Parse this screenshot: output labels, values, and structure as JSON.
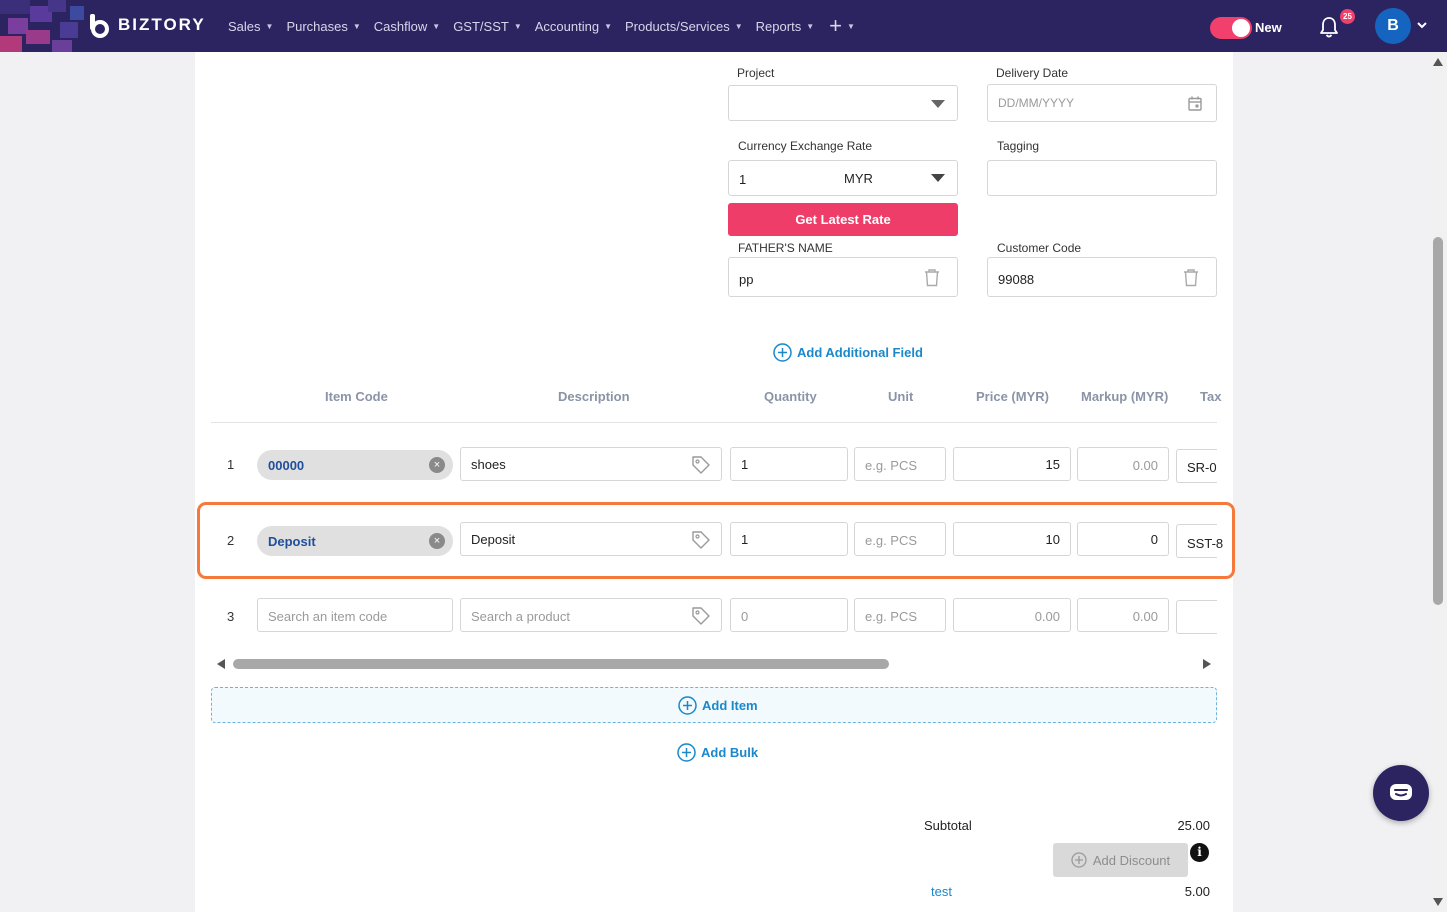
{
  "nav": {
    "brand": "BIZTORY",
    "items": [
      "Sales",
      "Purchases",
      "Cashflow",
      "GST/SST",
      "Accounting",
      "Products/Services",
      "Reports"
    ],
    "plus": "+",
    "toggle_label": "New",
    "notification_count": "25",
    "avatar_initial": "B",
    "accent_color": "#f0406b",
    "bg_color": "#2b2460"
  },
  "form": {
    "project_label": "Project",
    "delivery_label": "Delivery Date",
    "delivery_placeholder": "DD/MM/YYYY",
    "rate_label": "Currency Exchange Rate",
    "rate_value": "1",
    "currency": "MYR",
    "tagging_label": "Tagging",
    "get_rate_button": "Get Latest Rate",
    "father_label": "FATHER'S NAME",
    "father_value": "pp",
    "customer_code_label": "Customer Code",
    "customer_code_value": "99088",
    "add_field": "Add Additional Field"
  },
  "table": {
    "headers": [
      "Item Code",
      "Description",
      "Quantity",
      "Unit",
      "Price (MYR)",
      "Markup (MYR)",
      "Tax"
    ],
    "rows": [
      {
        "num": "1",
        "code": "00000",
        "description": "shoes",
        "quantity": "1",
        "unit_placeholder": "e.g. PCS",
        "price": "15",
        "markup_placeholder": "0.00",
        "tax": "SR-0"
      },
      {
        "num": "2",
        "code": "Deposit",
        "description": "Deposit",
        "quantity": "1",
        "unit_placeholder": "e.g. PCS",
        "price": "10",
        "markup": "0",
        "tax": "SST-8"
      },
      {
        "num": "3",
        "code_placeholder": "Search an item code",
        "description_placeholder": "Search a product",
        "quantity_placeholder": "0",
        "unit_placeholder": "e.g. PCS",
        "price_placeholder": "0.00",
        "markup_placeholder": "0.00"
      }
    ],
    "add_item": "Add Item",
    "add_bulk": "Add Bulk"
  },
  "summary": {
    "subtotal_label": "Subtotal",
    "subtotal_value": "25.00",
    "add_discount": "Add Discount",
    "info": "i",
    "test_label": "test",
    "test_value": "5.00"
  }
}
